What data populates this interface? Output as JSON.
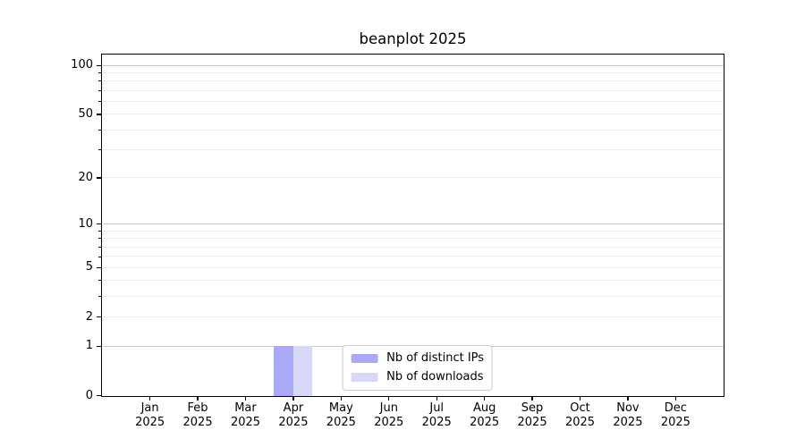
{
  "chart_data": {
    "type": "bar",
    "title": "beanplot 2025",
    "categories": [
      {
        "month": "Jan",
        "year": "2025"
      },
      {
        "month": "Feb",
        "year": "2025"
      },
      {
        "month": "Mar",
        "year": "2025"
      },
      {
        "month": "Apr",
        "year": "2025"
      },
      {
        "month": "May",
        "year": "2025"
      },
      {
        "month": "Jun",
        "year": "2025"
      },
      {
        "month": "Jul",
        "year": "2025"
      },
      {
        "month": "Aug",
        "year": "2025"
      },
      {
        "month": "Sep",
        "year": "2025"
      },
      {
        "month": "Oct",
        "year": "2025"
      },
      {
        "month": "Nov",
        "year": "2025"
      },
      {
        "month": "Dec",
        "year": "2025"
      }
    ],
    "series": [
      {
        "name": "Nb of distinct IPs",
        "color": "#a9a9f7",
        "values": [
          0,
          0,
          0,
          1,
          0,
          0,
          0,
          0,
          0,
          0,
          0,
          0
        ]
      },
      {
        "name": "Nb of downloads",
        "color": "#d8d8f9",
        "values": [
          0,
          0,
          0,
          1,
          0,
          0,
          0,
          0,
          0,
          0,
          0,
          0
        ]
      }
    ],
    "xlabel": "",
    "ylabel": "",
    "y_axis": {
      "scale": "log1p",
      "labeled_ticks": [
        0,
        1,
        2,
        5,
        10,
        20,
        50,
        100
      ],
      "minor_ticks": [
        3,
        4,
        6,
        7,
        8,
        9,
        30,
        40,
        60,
        70,
        80,
        90
      ],
      "grid_major_values": [
        1,
        10,
        100
      ],
      "grid_minor_values": [
        2,
        3,
        4,
        5,
        6,
        7,
        8,
        9,
        20,
        30,
        40,
        50,
        60,
        70,
        80,
        90
      ],
      "top_value": 116.5,
      "ylim": [
        0,
        116.5
      ]
    },
    "grid": "on",
    "legend_position": "lower center"
  },
  "colors": {
    "background": "#ffffff",
    "axis": "#000000",
    "text": "#000000",
    "grid_major": "#c9c9c9",
    "grid_minor": "#ededed",
    "legend_border": "#cccccc",
    "bar_distinct_ips": "#a9a9f7",
    "bar_downloads": "#d8d8f9"
  }
}
